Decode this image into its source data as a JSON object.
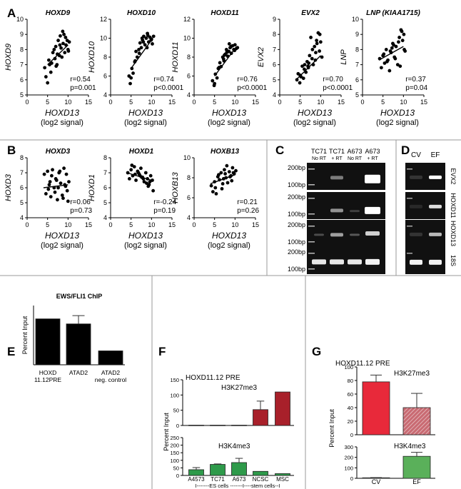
{
  "panel_letters": {
    "A": "A",
    "B": "B",
    "C": "C",
    "D": "D",
    "E": "E",
    "F": "F",
    "G": "G"
  },
  "chart_data": [
    {
      "type": "scatter",
      "panel": "A",
      "title": "HOXD9",
      "ylabel": "HOXD9",
      "xlabel": "HOXD13",
      "xlabel2": "(log2 signal)",
      "xlim": [
        0,
        15
      ],
      "ylim": [
        5,
        10
      ],
      "xticks": [
        0,
        5,
        10,
        15
      ],
      "yticks": [
        5,
        6,
        7,
        8,
        9,
        10
      ],
      "stat_r": "r=0.54",
      "stat_p": "p=0.001",
      "fit": [
        [
          5,
          7.0
        ],
        [
          10,
          8.3
        ]
      ],
      "x": [
        4.3,
        4.6,
        5.0,
        5.3,
        5.8,
        6.0,
        6.3,
        6.8,
        7.0,
        7.3,
        7.6,
        7.9,
        8.1,
        8.3,
        8.5,
        8.8,
        9.0,
        9.2,
        9.5,
        9.8,
        10.0,
        10.3,
        5.5,
        6.6,
        7.4,
        8.0,
        8.7,
        9.4,
        10.1,
        7.1
      ],
      "y": [
        6.8,
        6.2,
        5.8,
        7.3,
        6.5,
        7.1,
        7.8,
        7.4,
        8.2,
        7.0,
        8.6,
        7.6,
        8.9,
        8.1,
        7.5,
        8.4,
        9.0,
        7.8,
        8.3,
        8.6,
        8.0,
        8.5,
        7.0,
        8.0,
        7.7,
        8.3,
        9.2,
        8.8,
        7.9,
        6.9
      ]
    },
    {
      "type": "scatter",
      "panel": "A",
      "title": "HOXD10",
      "ylabel": "HOXD10",
      "xlabel": "HOXD13",
      "xlabel2": "(log2 signal)",
      "xlim": [
        0,
        15
      ],
      "ylim": [
        4,
        12
      ],
      "xticks": [
        0,
        5,
        10,
        15
      ],
      "yticks": [
        4,
        6,
        8,
        10,
        12
      ],
      "stat_r": "r=0.74",
      "stat_p": "p<0.0001",
      "fit": [
        [
          5,
          6.8
        ],
        [
          10,
          9.8
        ]
      ],
      "x": [
        4.5,
        4.8,
        5.2,
        5.5,
        5.9,
        6.2,
        6.5,
        6.9,
        7.2,
        7.5,
        7.8,
        8.1,
        8.4,
        8.7,
        9.0,
        9.3,
        9.6,
        9.9,
        10.2,
        10.5,
        5.0,
        6.0,
        7.0,
        8.0,
        9.1,
        10.0,
        8.9,
        7.7
      ],
      "y": [
        6.0,
        5.2,
        6.8,
        6.3,
        7.5,
        8.6,
        8.0,
        8.8,
        9.5,
        9.0,
        9.8,
        10.2,
        9.3,
        10.0,
        10.5,
        9.6,
        10.1,
        9.8,
        9.4,
        10.2,
        5.8,
        7.6,
        8.4,
        9.6,
        10.3,
        9.9,
        9.0,
        10.0
      ]
    },
    {
      "type": "scatter",
      "panel": "A",
      "title": "HOXD11",
      "ylabel": "HOXD11",
      "xlabel": "HOXD13",
      "xlabel2": "(log2 signal)",
      "xlim": [
        0,
        15
      ],
      "ylim": [
        4,
        12
      ],
      "xticks": [
        0,
        5,
        10,
        15
      ],
      "yticks": [
        4,
        6,
        8,
        10,
        12
      ],
      "stat_r": "r=0.76",
      "stat_p": "p<0.0001",
      "fit": [
        [
          5,
          6.0
        ],
        [
          10,
          8.9
        ]
      ],
      "x": [
        4.5,
        4.9,
        5.2,
        5.6,
        5.9,
        6.3,
        6.6,
        7.0,
        7.3,
        7.6,
        7.9,
        8.2,
        8.5,
        8.8,
        9.1,
        9.4,
        9.7,
        10.0,
        10.3,
        10.6,
        5.0,
        6.1,
        7.2,
        8.0,
        9.0,
        9.9,
        8.6,
        7.4
      ],
      "y": [
        5.5,
        5.0,
        6.2,
        5.8,
        6.8,
        7.4,
        7.0,
        8.0,
        7.6,
        8.3,
        8.8,
        8.1,
        8.6,
        9.0,
        8.4,
        9.2,
        8.8,
        9.3,
        8.9,
        9.0,
        5.2,
        6.9,
        7.8,
        8.5,
        9.1,
        8.7,
        9.4,
        8.2
      ]
    },
    {
      "type": "scatter",
      "panel": "A",
      "title": "EVX2",
      "ylabel": "EVX2",
      "xlabel": "HOXD13",
      "xlabel2": "(log2 signal)",
      "xlim": [
        0,
        15
      ],
      "ylim": [
        4,
        9
      ],
      "xticks": [
        0,
        5,
        10,
        15
      ],
      "yticks": [
        4,
        5,
        6,
        7,
        8,
        9
      ],
      "stat_r": "r=0.70",
      "stat_p": "p<0.0001",
      "fit": [
        [
          4,
          5.0
        ],
        [
          10,
          6.6
        ]
      ],
      "x": [
        4.2,
        4.5,
        4.9,
        5.2,
        5.5,
        5.8,
        6.1,
        6.4,
        6.7,
        7.0,
        7.3,
        7.6,
        7.9,
        8.2,
        8.5,
        8.8,
        9.1,
        9.4,
        9.7,
        10.0,
        10.3,
        5.0,
        6.0,
        7.1,
        8.0,
        9.0,
        9.8,
        8.7,
        6.9
      ],
      "y": [
        5.0,
        5.4,
        4.8,
        5.2,
        5.9,
        5.1,
        6.0,
        5.5,
        6.2,
        5.8,
        6.6,
        7.8,
        6.4,
        6.0,
        7.2,
        6.8,
        7.4,
        8.1,
        6.9,
        7.5,
        6.5,
        5.3,
        5.7,
        6.1,
        7.0,
        7.6,
        8.0,
        6.3,
        5.9
      ]
    },
    {
      "type": "scatter",
      "panel": "A",
      "title": "LNP (KIAA1715)",
      "ylabel": "LNP",
      "xlabel": "HOXD13",
      "xlabel2": "(log2 signal)",
      "xlim": [
        0,
        15
      ],
      "ylim": [
        5,
        10
      ],
      "xticks": [
        0,
        5,
        10,
        15
      ],
      "yticks": [
        5,
        6,
        7,
        8,
        9,
        10
      ],
      "stat_r": "r=0.37",
      "stat_p": "p=0.04",
      "fit": [
        [
          4,
          7.3
        ],
        [
          10,
          8.2
        ]
      ],
      "x": [
        4.2,
        4.6,
        5.0,
        5.4,
        5.8,
        6.2,
        6.6,
        7.0,
        7.4,
        7.8,
        8.2,
        8.6,
        9.0,
        9.4,
        9.8,
        10.1,
        10.4,
        5.2,
        6.0,
        7.2,
        8.0,
        8.8,
        9.6,
        10.2,
        6.8,
        9.2,
        7.6
      ],
      "y": [
        7.4,
        6.8,
        7.6,
        7.1,
        8.0,
        7.3,
        6.6,
        7.8,
        8.4,
        7.5,
        8.2,
        7.0,
        8.8,
        9.3,
        8.6,
        9.0,
        7.9,
        7.7,
        7.2,
        8.1,
        7.4,
        8.5,
        9.2,
        8.0,
        7.9,
        6.9,
        8.3
      ]
    },
    {
      "type": "scatter",
      "panel": "B",
      "title": "HOXD3",
      "ylabel": "HOXD3",
      "xlabel": "HOXD13",
      "xlabel2": "(log2 signal)",
      "xlim": [
        0,
        15
      ],
      "ylim": [
        4,
        8
      ],
      "xticks": [
        0,
        5,
        10,
        15
      ],
      "yticks": [
        4,
        5,
        6,
        7,
        8
      ],
      "stat_r": "r=0.06",
      "stat_p": "p=0.73",
      "fit": [
        [
          4,
          6.0
        ],
        [
          10,
          6.2
        ]
      ],
      "x": [
        4.2,
        4.6,
        5.0,
        5.4,
        5.8,
        6.2,
        6.6,
        7.0,
        7.4,
        7.8,
        8.2,
        8.6,
        9.0,
        9.4,
        9.8,
        10.2,
        5.2,
        6.0,
        7.2,
        8.0,
        8.8,
        9.6,
        6.8,
        9.2,
        7.6,
        5.6,
        10.0
      ],
      "y": [
        6.9,
        5.6,
        7.1,
        6.2,
        5.4,
        7.2,
        6.0,
        6.6,
        5.2,
        7.0,
        6.3,
        5.5,
        7.3,
        6.1,
        5.8,
        6.4,
        5.9,
        6.8,
        6.5,
        7.1,
        5.3,
        6.9,
        5.7,
        6.2,
        6.0,
        6.4,
        5.1
      ]
    },
    {
      "type": "scatter",
      "panel": "B",
      "title": "HOXD1",
      "ylabel": "HOXD1",
      "xlabel": "HOXD13",
      "xlabel2": "(log2 signal)",
      "xlim": [
        0,
        15
      ],
      "ylim": [
        4,
        8
      ],
      "xticks": [
        0,
        5,
        10,
        15
      ],
      "yticks": [
        4,
        5,
        6,
        7,
        8
      ],
      "stat_r": "r=-0.24",
      "stat_p": "p=0.19",
      "fit": [
        [
          4,
          7.0
        ],
        [
          10,
          6.5
        ]
      ],
      "x": [
        4.2,
        4.6,
        5.0,
        5.4,
        5.8,
        6.2,
        6.6,
        7.0,
        7.4,
        7.8,
        8.2,
        8.6,
        9.0,
        9.4,
        9.8,
        10.2,
        5.2,
        6.0,
        7.2,
        8.0,
        8.8,
        9.6,
        6.8,
        9.2,
        7.6,
        10.4
      ],
      "y": [
        7.0,
        6.6,
        7.2,
        6.8,
        7.4,
        6.5,
        7.1,
        6.9,
        7.3,
        6.7,
        6.4,
        7.0,
        6.6,
        6.2,
        6.8,
        6.5,
        7.5,
        6.9,
        6.8,
        6.6,
        6.3,
        6.4,
        7.0,
        6.1,
        6.7,
        5.8
      ]
    },
    {
      "type": "scatter",
      "panel": "B",
      "title": "HOXB13",
      "ylabel": "HOXB13",
      "xlabel": "HOXD13",
      "xlabel2": "(log2 signal)",
      "xlim": [
        0,
        15
      ],
      "ylim": [
        4,
        10
      ],
      "xticks": [
        0,
        5,
        10,
        15
      ],
      "yticks": [
        4,
        6,
        8,
        10
      ],
      "stat_r": "r=0.21",
      "stat_p": "p=0.26",
      "fit": [
        [
          4,
          7.4
        ],
        [
          10,
          8.3
        ]
      ],
      "x": [
        4.2,
        4.6,
        5.0,
        5.4,
        5.8,
        6.2,
        6.6,
        7.0,
        7.4,
        7.8,
        8.2,
        8.6,
        9.0,
        9.4,
        9.8,
        10.2,
        5.2,
        6.0,
        7.2,
        8.0,
        8.8,
        9.6,
        6.8,
        9.2,
        7.6
      ],
      "y": [
        7.2,
        6.6,
        7.6,
        6.4,
        8.1,
        7.8,
        8.5,
        7.4,
        8.8,
        8.0,
        7.5,
        8.6,
        8.2,
        9.0,
        8.4,
        8.7,
        7.0,
        8.3,
        7.9,
        9.2,
        8.1,
        8.5,
        6.9,
        7.7,
        8.4
      ]
    },
    {
      "type": "bar",
      "panel": "E",
      "title": "EWS/FLI1 ChIP",
      "ylabel": "Percent Input",
      "categories": [
        "HOXD 11.12PRE",
        "ATAD2",
        "ATAD2 neg. control"
      ],
      "cat_lines": [
        [
          "HOXD",
          "11.12PRE"
        ],
        [
          "ATAD2"
        ],
        [
          "ATAD2",
          "neg. control"
        ]
      ],
      "values": [
        0.155,
        0.138,
        0.047
      ],
      "errors": [
        0.0,
        0.028,
        0.0
      ],
      "ylim": [
        0,
        0.2
      ]
    },
    {
      "type": "bar",
      "panel": "F",
      "title": "HOXD11.12 PRE",
      "subtitle_top": "H3K27me3",
      "subtitle_bottom": "H3K4me3",
      "ylabel": "Percent Input",
      "categories": [
        "A4573",
        "TC71",
        "A673",
        "NCSC",
        "MSC"
      ],
      "group_label": "I-------ES cells -------I----stem cells--I",
      "top": {
        "values": [
          1,
          1,
          1,
          52,
          110
        ],
        "errors": [
          0,
          0,
          0,
          28,
          0
        ],
        "ylim": [
          0,
          150
        ],
        "yticks": [
          0,
          50,
          100,
          150
        ]
      },
      "bottom": {
        "values": [
          38,
          73,
          85,
          27,
          12
        ],
        "errors": [
          14,
          3,
          28,
          0,
          0
        ],
        "ylim": [
          0,
          250
        ],
        "yticks": [
          0,
          50,
          100,
          150,
          200,
          250
        ]
      }
    },
    {
      "type": "bar",
      "panel": "G",
      "title": "HOXD11.12 PRE",
      "subtitle_top": "H3K27me3",
      "subtitle_bottom": "H3K4me3",
      "ylabel": "Percent Input",
      "categories": [
        "CV",
        "EF"
      ],
      "top": {
        "values": [
          78,
          40
        ],
        "errors": [
          10,
          21
        ],
        "ylim": [
          0,
          100
        ],
        "yticks": [
          0,
          20,
          40,
          60,
          80,
          100
        ]
      },
      "bottom": {
        "values": [
          5,
          210
        ],
        "errors": [
          2,
          38
        ],
        "ylim": [
          0,
          300
        ],
        "yticks": [
          0,
          100,
          200,
          300
        ]
      }
    }
  ],
  "gel_C": {
    "lanes": [
      [
        "TC71",
        "No RT"
      ],
      [
        "TC71",
        "+ RT"
      ],
      [
        "A673",
        "No RT"
      ],
      [
        "A673",
        "+ RT"
      ]
    ],
    "rows": [
      {
        "markers": [
          "200bp",
          "100bp"
        ]
      },
      {
        "markers": [
          "200bp",
          "100bp"
        ]
      },
      {
        "markers": [
          "200bp",
          "100bp"
        ]
      },
      {
        "markers": [
          "200bp",
          "100bp"
        ]
      }
    ]
  },
  "gel_D": {
    "lanes": [
      "CV",
      "EF"
    ],
    "genes": [
      "EVX2",
      "HOXD11",
      "HOXD13",
      "18S"
    ]
  }
}
